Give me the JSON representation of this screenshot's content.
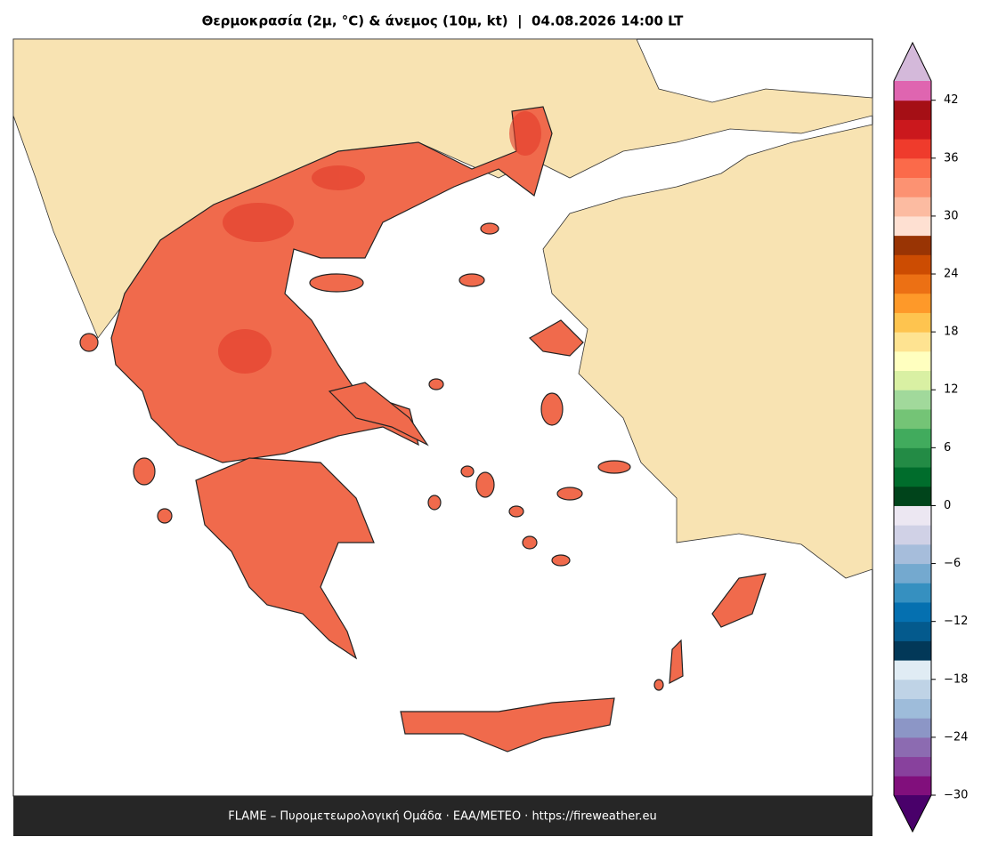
{
  "title": "Θερμοκρασία (2μ, °C) & άνεμος (10μ, kt)  |  04.08.2026 14:00 LT",
  "footer": "FLAME – Πυρομετεωρολογική Ομάδα · ΕΑΑ/METEO · https://fireweather.eu",
  "colorbar": {
    "type": "colorbar",
    "clim": [
      -30,
      44
    ],
    "ticks": [
      {
        "value": -30,
        "label": "−30"
      },
      {
        "value": -24,
        "label": "−24"
      },
      {
        "value": -18,
        "label": "−18"
      },
      {
        "value": -12,
        "label": "−12"
      },
      {
        "value": -6,
        "label": "−6"
      },
      0,
      6,
      12,
      18,
      24,
      30,
      36,
      42
    ],
    "colors": [
      "#810f7c",
      "#88419d",
      "#8c6bb1",
      "#8c96c6",
      "#9ebcda",
      "#bfd3e6",
      "#e0ecf4",
      "#023858",
      "#045a8d",
      "#0570b0",
      "#3690c0",
      "#74a9cf",
      "#a6bddb",
      "#d0d1e6",
      "#ece7f2",
      "#00441b",
      "#006d2c",
      "#238b45",
      "#41ab5d",
      "#74c476",
      "#a1d99b",
      "#d9f0a3",
      "#ffffbf",
      "#fee391",
      "#fec44f",
      "#fe9929",
      "#ec7014",
      "#cc4c02",
      "#993404",
      "#fee0d2",
      "#fcbba1",
      "#fc9272",
      "#fb6a4a",
      "#ef3b2c",
      "#cb181d",
      "#a50f15",
      "#df65b0"
    ],
    "under_color": "#49006a",
    "over_color": "#d4b9da"
  }
}
